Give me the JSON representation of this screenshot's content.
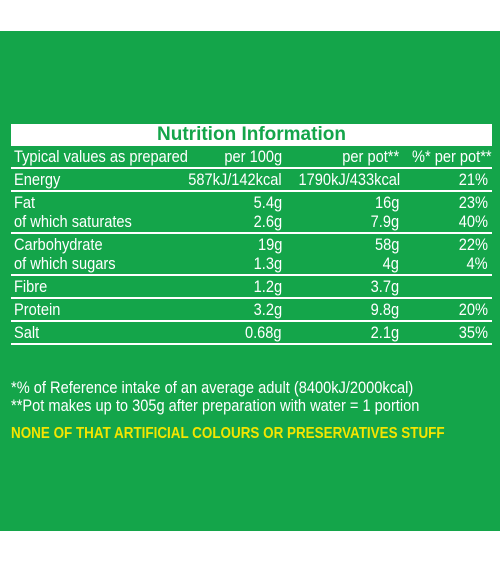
{
  "title": "Nutrition Information",
  "header": {
    "label": "Typical values as prepared",
    "per_100g": "per 100g",
    "per_pot": "per pot**",
    "ri": "%* per pot**"
  },
  "rows": [
    {
      "lines": [
        {
          "label": "Energy",
          "per_100g": "587kJ/142kcal",
          "per_pot": "1790kJ/433kcal",
          "ri": "21%"
        }
      ]
    },
    {
      "lines": [
        {
          "label": "Fat",
          "per_100g": "5.4g",
          "per_pot": "16g",
          "ri": "23%"
        },
        {
          "label": "of which saturates",
          "per_100g": "2.6g",
          "per_pot": "7.9g",
          "ri": "40%"
        }
      ]
    },
    {
      "lines": [
        {
          "label": "Carbohydrate",
          "per_100g": "19g",
          "per_pot": "58g",
          "ri": "22%"
        },
        {
          "label": "of which sugars",
          "per_100g": "1.3g",
          "per_pot": "4g",
          "ri": "4%"
        }
      ]
    },
    {
      "lines": [
        {
          "label": "Fibre",
          "per_100g": "1.2g",
          "per_pot": "3.7g",
          "ri": ""
        }
      ]
    },
    {
      "lines": [
        {
          "label": "Protein",
          "per_100g": "3.2g",
          "per_pot": "9.8g",
          "ri": "20%"
        }
      ]
    },
    {
      "lines": [
        {
          "label": "Salt",
          "per_100g": "0.68g",
          "per_pot": "2.1g",
          "ri": "35%"
        }
      ]
    }
  ],
  "footnotes": [
    "*% of Reference intake of an average adult (8400kJ/2000kcal)",
    "**Pot makes up to 305g after preparation with water = 1 portion"
  ],
  "claim": "NONE OF THAT ARTIFICIAL COLOURS OR PRESERVATIVES STUFF",
  "colors": {
    "panel": "#14a54a",
    "text": "#ffffff",
    "claim": "#f4e500"
  }
}
